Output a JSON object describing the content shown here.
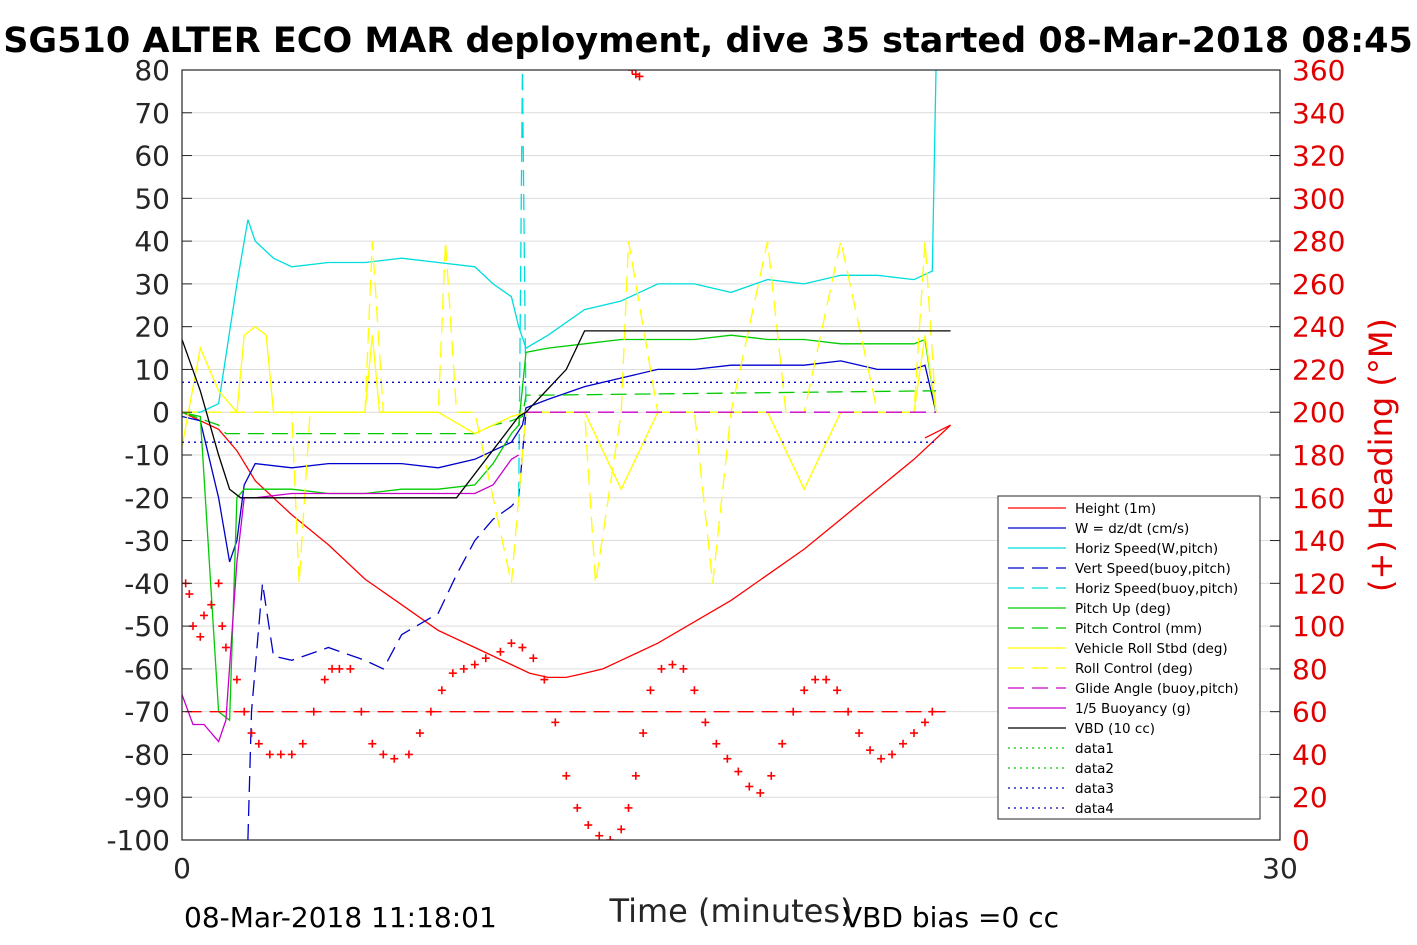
{
  "chart_data": {
    "type": "line",
    "title": "SG510 ALTER ECO MAR deployment, dive 35 started 08-Mar-2018 08:45",
    "xlabel": "Time (minutes)",
    "ylabel": "",
    "ylabel_right": "(+) Heading (°M)",
    "xlim": [
      0,
      30
    ],
    "ylim": [
      -100,
      80
    ],
    "ylim_right": [
      0,
      360
    ],
    "x_ticks": [
      "0",
      "30"
    ],
    "y_ticks": [
      "80",
      "70",
      "60",
      "50",
      "40",
      "30",
      "20",
      "10",
      "0",
      "-10",
      "-20",
      "-30",
      "-40",
      "-50",
      "-60",
      "-70",
      "-80",
      "-90",
      "-100"
    ],
    "y_ticks_right": [
      "360",
      "340",
      "320",
      "300",
      "280",
      "260",
      "240",
      "220",
      "200",
      "180",
      "160",
      "140",
      "120",
      "100",
      "80",
      "60",
      "40",
      "20",
      "0"
    ],
    "grid": "horizontal",
    "legend_position": "lower-right",
    "footer_left": "08-Mar-2018 11:18:01",
    "footer_right": "VBD bias =0 cc",
    "series": [
      {
        "name": "Height (1m)",
        "color": "#ff0000",
        "style": "solid",
        "x": [
          0,
          1,
          1.5,
          2,
          3,
          4,
          5,
          6,
          7,
          8,
          9,
          9.5,
          10,
          10.5,
          11,
          11.5,
          12,
          13,
          14,
          15,
          16,
          17,
          18,
          19,
          20,
          21,
          20.3
        ],
        "y": [
          0,
          -4,
          -9,
          -16,
          -24,
          -31,
          -39,
          -45,
          -51,
          -55,
          -59,
          -61,
          -62,
          -62,
          -61,
          -60,
          -58,
          -54,
          -49,
          -44,
          -38,
          -32,
          -25,
          -18,
          -11,
          -3,
          -6
        ]
      },
      {
        "name": "W = dz/dt (cm/s)",
        "color": "#0000cc",
        "style": "solid",
        "x": [
          0,
          0.5,
          1,
          1.3,
          1.5,
          1.7,
          2,
          3,
          4,
          5,
          6,
          7,
          8,
          8.5,
          9,
          9.3,
          9.4,
          10,
          11,
          12,
          13,
          14,
          15,
          16,
          17,
          18,
          19,
          20,
          20.3,
          20.6
        ],
        "y": [
          -1,
          -2,
          -20,
          -35,
          -30,
          -17,
          -12,
          -13,
          -12,
          -12,
          -12,
          -13,
          -11,
          -9,
          -7,
          -3,
          1,
          3,
          6,
          8,
          10,
          10,
          11,
          11,
          11,
          12,
          10,
          10,
          11,
          0
        ]
      },
      {
        "name": "Horiz Speed(W,pitch)",
        "color": "#00dddd",
        "style": "solid",
        "x": [
          0,
          0.5,
          1,
          1.5,
          1.8,
          2,
          2.5,
          3,
          4,
          5,
          6,
          7,
          8,
          8.5,
          9,
          9.2,
          9.4,
          10,
          11,
          12,
          13,
          14,
          15,
          16,
          17,
          18,
          19,
          20,
          20.5,
          20.6
        ],
        "y": [
          0,
          0,
          2,
          30,
          45,
          40,
          36,
          34,
          35,
          35,
          36,
          35,
          34,
          30,
          27,
          20,
          15,
          18,
          24,
          26,
          30,
          30,
          28,
          31,
          30,
          32,
          32,
          31,
          33,
          80
        ]
      },
      {
        "name": "Vert Speed(buoy,pitch)",
        "color": "#0000cc",
        "style": "dashed",
        "x": [
          1.8,
          1.9,
          2.2,
          2.5,
          3,
          4,
          5,
          5.5,
          6,
          7,
          7.5,
          8,
          8.5,
          9,
          9.2,
          9.4
        ],
        "y": [
          -100,
          -70,
          -40,
          -57,
          -58,
          -55,
          -58,
          -60,
          -52,
          -47,
          -38,
          -30,
          -25,
          -22,
          -20,
          0
        ]
      },
      {
        "name": "Horiz Speed(buoy,pitch)",
        "color": "#00dddd",
        "style": "dashed",
        "x": [
          9.2,
          9.3,
          9.4
        ],
        "y": [
          -20,
          80,
          0
        ]
      },
      {
        "name": "Pitch Up (deg)",
        "color": "#00cc00",
        "style": "solid",
        "x": [
          0,
          0.5,
          1,
          1.3,
          1.5,
          1.7,
          2,
          3,
          4,
          5,
          6,
          7,
          8,
          8.5,
          9,
          9.2,
          9.4,
          10,
          11,
          12,
          13,
          14,
          15,
          16,
          17,
          18,
          19,
          20,
          20.3,
          20.6
        ],
        "y": [
          0,
          -1,
          -70,
          -72,
          -20,
          -18,
          -18,
          -18,
          -19,
          -19,
          -18,
          -18,
          -17,
          -12,
          -5,
          -3,
          14,
          15,
          16,
          17,
          17,
          17,
          18,
          17,
          17,
          16,
          16,
          16,
          17,
          0
        ]
      },
      {
        "name": "Pitch Control (mm)",
        "color": "#00cc00",
        "style": "dashed",
        "x": [
          0,
          1,
          1.2,
          2,
          5,
          8,
          8.5,
          9,
          9.3,
          9.4,
          10,
          20.6
        ],
        "y": [
          0,
          -3,
          -5,
          -5,
          -5,
          -5,
          -3,
          -2,
          -1,
          4,
          4,
          5
        ]
      },
      {
        "name": "Vehicle Roll Stbd (deg)",
        "color": "#ffff00",
        "style": "solid",
        "x": [
          0,
          0.5,
          1,
          1.5,
          1.7,
          2,
          2.3,
          2.5,
          3,
          4,
          5,
          5.2,
          5.4,
          6,
          7,
          8,
          9,
          9.4,
          10,
          11,
          12,
          13,
          14,
          15,
          16,
          17,
          18,
          19,
          20,
          20.3,
          20.6
        ],
        "y": [
          -8,
          15,
          5,
          0,
          18,
          20,
          18,
          0,
          0,
          0,
          0,
          18,
          0,
          0,
          0,
          -5,
          -1,
          0,
          0,
          0,
          -18,
          0,
          0,
          0,
          0,
          -18,
          0,
          0,
          0,
          18,
          0
        ]
      },
      {
        "name": "Roll Control (deg)",
        "color": "#ffff00",
        "style": "dashed",
        "x": [
          0,
          1,
          2,
          3,
          3.2,
          3.5,
          4,
          5,
          5.2,
          5.5,
          6,
          7,
          7.2,
          7.5,
          8,
          9,
          9.4,
          10,
          11,
          11.3,
          12,
          12.2,
          13,
          14,
          14.5,
          15,
          16,
          16.5,
          17,
          18,
          19,
          20,
          20.3,
          20.6
        ],
        "y": [
          0,
          0,
          0,
          0,
          -40,
          0,
          0,
          0,
          40,
          0,
          0,
          0,
          40,
          0,
          0,
          -40,
          0,
          0,
          0,
          -40,
          0,
          40,
          0,
          0,
          -40,
          0,
          40,
          0,
          0,
          40,
          0,
          0,
          40,
          0
        ]
      },
      {
        "name": "Glide Angle (buoy,pitch)",
        "color": "#cc00cc",
        "style": "dashed",
        "x": [
          9.4,
          20.6
        ],
        "y": [
          0,
          0
        ]
      },
      {
        "name": "1/5 Buoyancy (g)",
        "color": "#cc00cc",
        "style": "solid",
        "x": [
          0,
          0.3,
          0.6,
          1,
          1.2,
          1.5,
          1.7,
          2,
          3,
          4,
          5,
          6,
          7,
          8,
          8.5,
          9,
          9.2
        ],
        "y": [
          -66,
          -73,
          -73,
          -77,
          -72,
          -35,
          -20,
          -20,
          -19,
          -19,
          -19,
          -19,
          -19,
          -19,
          -17,
          -11,
          -10
        ]
      },
      {
        "name": "VBD (10 cc)",
        "color": "#000000",
        "style": "solid",
        "x": [
          0,
          0.5,
          1,
          1.3,
          1.6,
          2,
          3,
          5,
          7,
          7.5,
          9.2,
          9.4,
          10.5,
          11,
          21
        ],
        "y": [
          17,
          5,
          -10,
          -18,
          -20,
          -20,
          -20,
          -20,
          -20,
          -20,
          -1,
          0,
          10,
          19,
          19
        ]
      },
      {
        "name": "data1",
        "color": "#00cc00",
        "style": "dotted",
        "x": [],
        "y": []
      },
      {
        "name": "data2",
        "color": "#00cc00",
        "style": "dotted",
        "x": [],
        "y": []
      },
      {
        "name": "data3",
        "color": "#0000cc",
        "style": "dotted",
        "x": [
          0,
          20.6
        ],
        "y": [
          7,
          7
        ]
      },
      {
        "name": "data4",
        "color": "#0000cc",
        "style": "dotted",
        "x": [
          0,
          20.6
        ],
        "y": [
          -7,
          -7
        ]
      }
    ],
    "heading_reference": {
      "color": "#ff0000",
      "style": "dashed",
      "value": 60
    },
    "heading_points": {
      "color": "#ff0000",
      "marker": "+",
      "x": [
        0.1,
        0.2,
        0.3,
        0.5,
        0.6,
        0.8,
        1,
        1.1,
        1.2,
        1.5,
        1.7,
        1.9,
        2.1,
        2.4,
        2.7,
        3,
        3.3,
        3.6,
        3.9,
        4.1,
        4.3,
        4.6,
        4.9,
        5.2,
        5.5,
        5.8,
        6.2,
        6.5,
        6.8,
        7.1,
        7.4,
        7.7,
        8,
        8.3,
        8.7,
        9,
        9.3,
        9.6,
        9.9,
        10.2,
        10.5,
        10.8,
        11.1,
        11.4,
        11.7,
        12,
        12.2,
        12.4,
        12.6,
        12.8,
        13.1,
        13.4,
        13.7,
        14,
        14.3,
        14.6,
        14.9,
        15.2,
        15.5,
        15.8,
        16.1,
        16.4,
        16.7,
        17,
        17.3,
        17.6,
        17.9,
        18.2,
        18.5,
        18.8,
        19.1,
        19.4,
        19.7,
        20,
        20.3,
        20.5,
        12.3,
        12.4,
        12.5
      ],
      "y": [
        120,
        115,
        100,
        95,
        105,
        110,
        120,
        100,
        90,
        75,
        60,
        50,
        45,
        40,
        40,
        40,
        45,
        60,
        75,
        80,
        80,
        80,
        60,
        45,
        40,
        38,
        40,
        50,
        60,
        70,
        78,
        80,
        82,
        85,
        88,
        92,
        90,
        85,
        75,
        55,
        30,
        15,
        7,
        2,
        0,
        5,
        15,
        30,
        50,
        70,
        80,
        82,
        80,
        70,
        55,
        45,
        38,
        32,
        25,
        22,
        30,
        45,
        60,
        70,
        75,
        75,
        70,
        60,
        50,
        42,
        38,
        40,
        45,
        50,
        55,
        60,
        360,
        358,
        357
      ]
    }
  }
}
